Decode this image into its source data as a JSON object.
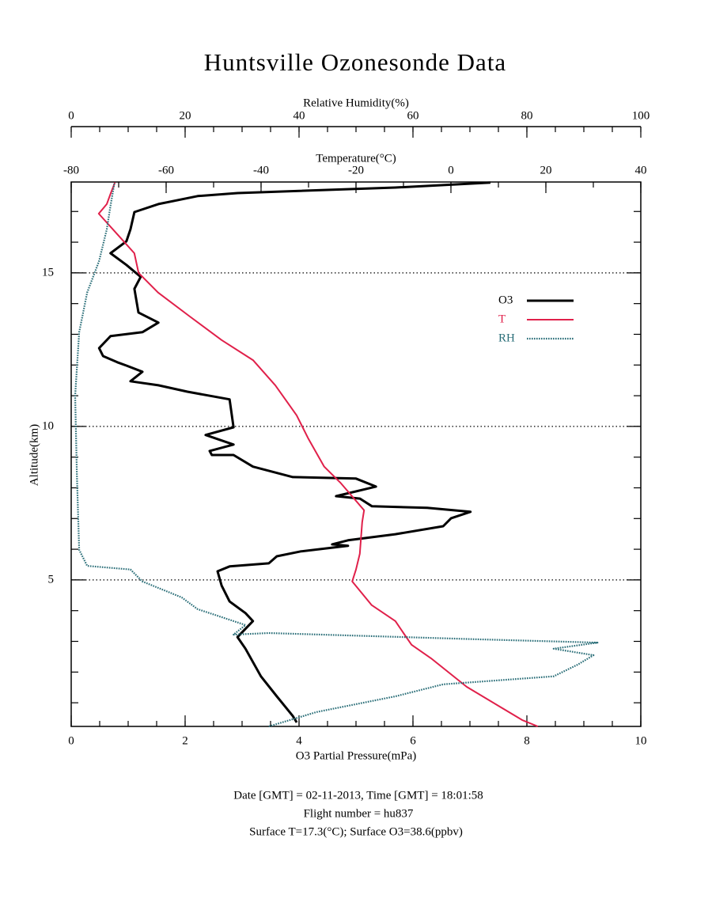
{
  "chart_data": {
    "type": "line",
    "title": "Huntsville Ozonesonde Data",
    "xlabel": "O3 Partial Pressure(mPa)",
    "x2label": "Temperature(°C)",
    "x3label": "Relative Humidity(%)",
    "ylabel": "Altitude(km)",
    "xlim": [
      0,
      10
    ],
    "xticks": [
      0,
      2,
      4,
      6,
      8,
      10
    ],
    "x2lim": [
      -80,
      40
    ],
    "x2ticks": [
      -80,
      -60,
      -40,
      -20,
      0,
      20,
      40
    ],
    "x3lim": [
      0,
      100
    ],
    "x3ticks": [
      0,
      20,
      40,
      60,
      80,
      100
    ],
    "ylim": [
      0.23,
      17.96
    ],
    "yticks": [
      5,
      10,
      15
    ],
    "grid": true,
    "legend": "upper right",
    "series": [
      {
        "name": "O3",
        "color": "#000000",
        "axis": "x",
        "values": [
          3.96,
          3.89,
          3.61,
          3.33,
          3.06,
          2.92,
          3.19,
          3.06,
          2.78,
          2.64,
          2.57,
          2.78,
          3.47,
          3.61,
          4.03,
          4.86,
          4.58,
          4.86,
          5.69,
          6.53,
          6.67,
          7.01,
          6.25,
          5.28,
          5.07,
          4.65,
          5.35,
          5.0,
          3.89,
          3.19,
          2.85,
          2.47,
          2.43,
          2.85,
          2.36,
          2.85,
          2.78,
          2.04,
          1.53,
          1.04,
          1.25,
          0.97,
          0.81,
          0.56,
          0.49,
          0.69,
          1.25,
          1.53,
          1.18,
          1.11,
          1.22,
          0.97,
          0.69,
          0.97,
          1.04,
          1.11,
          1.53,
          2.22,
          2.92,
          5.69,
          7.36
        ],
        "altitude": [
          0.36,
          0.57,
          1.21,
          1.86,
          2.76,
          3.14,
          3.66,
          3.92,
          4.3,
          4.82,
          5.28,
          5.44,
          5.54,
          5.77,
          5.93,
          6.11,
          6.16,
          6.29,
          6.49,
          6.75,
          7.01,
          7.22,
          7.35,
          7.4,
          7.65,
          7.73,
          8.04,
          8.3,
          8.35,
          8.69,
          9.07,
          9.07,
          9.2,
          9.41,
          9.72,
          9.97,
          10.88,
          11.13,
          11.34,
          11.47,
          11.78,
          11.98,
          12.09,
          12.29,
          12.55,
          12.94,
          13.07,
          13.38,
          13.71,
          14.48,
          14.87,
          15.26,
          15.64,
          16.03,
          16.42,
          16.98,
          17.24,
          17.5,
          17.6,
          17.78,
          17.94
        ]
      },
      {
        "name": "T",
        "color": "#e0204a",
        "axis": "x2",
        "values": [
          18.3,
          15,
          3.3,
          -4.2,
          -8.3,
          -10,
          -11.7,
          -16.7,
          -20.8,
          -20,
          -19.2,
          -18.7,
          -18.3,
          -23.3,
          -26.7,
          -30,
          -32.5,
          -37,
          -41.7,
          -48.3,
          -55,
          -61.7,
          -65.8,
          -66.7,
          -70,
          -74.2,
          -72.5,
          -71.7,
          -70.8
        ],
        "altitude": [
          0.23,
          0.44,
          1.52,
          2.45,
          2.89,
          3.27,
          3.66,
          4.18,
          4.95,
          5.34,
          5.85,
          6.88,
          7.27,
          8.17,
          8.69,
          9.59,
          10.36,
          11.34,
          12.16,
          12.81,
          13.58,
          14.36,
          15.0,
          15.64,
          16.21,
          16.93,
          17.24,
          17.58,
          17.94
        ]
      },
      {
        "name": "RH",
        "color": "#2a6e78",
        "axis": "x3",
        "values": [
          34.7,
          43.1,
          56.9,
          65.3,
          84.7,
          88.9,
          91.7,
          84.7,
          92.4,
          70.8,
          34.7,
          28.5,
          30.6,
          22.2,
          19.4,
          12.5,
          10.4,
          2.8,
          1.4,
          1.0,
          0.7,
          1.4,
          2.8,
          4.9,
          6.25,
          6.9,
          7.6
        ],
        "altitude": [
          0.23,
          0.7,
          1.21,
          1.6,
          1.86,
          2.24,
          2.55,
          2.76,
          2.96,
          3.07,
          3.27,
          3.22,
          3.53,
          4.05,
          4.43,
          4.95,
          5.34,
          5.46,
          5.98,
          8.43,
          11.0,
          13.07,
          14.36,
          15.39,
          16.42,
          17.19,
          17.94
        ]
      }
    ],
    "footer": [
      "Date [GMT] = 02-11-2013,  Time [GMT] = 18:01:58",
      "Flight number = hu837",
      "Surface T=17.3(°C); Surface O3=38.6(ppbv)"
    ]
  }
}
